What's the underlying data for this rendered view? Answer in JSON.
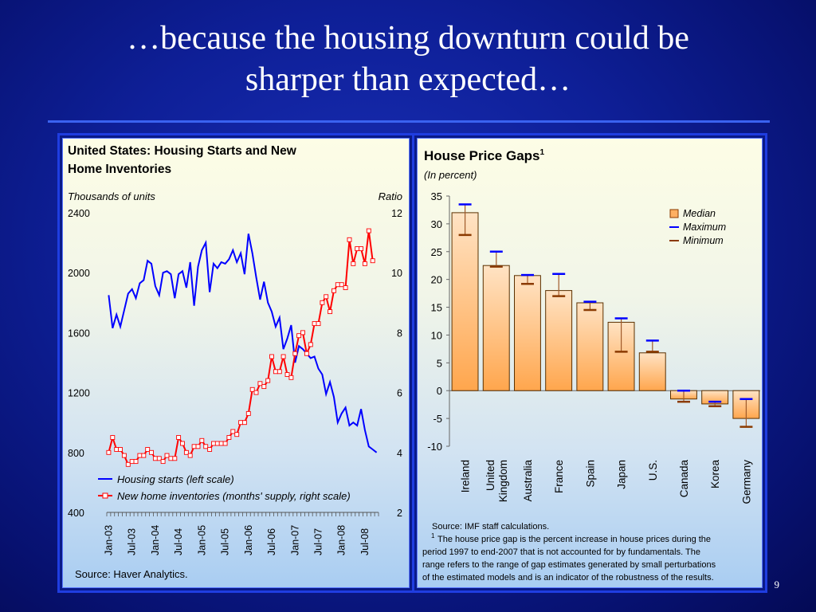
{
  "slide": {
    "title_line1": "…because the housing downturn could be",
    "title_line2": "sharper than expected…",
    "page_number": "9"
  },
  "colors": {
    "background": "#0e1f97",
    "housing_starts": "#0000ff",
    "inventories": "#ff0000",
    "median_bar": "#ffa64d",
    "maximum": "#0000ff",
    "minimum": "#8b3a00"
  },
  "left_chart": {
    "title_line1": "United States: Housing Starts and New",
    "title_line2": "Home Inventories",
    "left_axis_label": "Thousands of units",
    "right_axis_label": "Ratio",
    "source": "Source: Haver Analytics."
  },
  "right_chart": {
    "title": "House Price Gaps",
    "title_sup": "1",
    "subtitle": "(In percent)",
    "source": "Source: IMF staff calculations.",
    "footnote_mark": "1",
    "footnote_line1": "The house price gap is the percent increase in house prices during the",
    "footnote_line2": "period 1997 to end-2007 that is not accounted for by fundamentals. The",
    "footnote_line3": "range refers to the range  of gap estimates generated by small perturbations",
    "footnote_line4": "of the estimated models and is an indicator of the robustness of the results."
  },
  "chart_data": [
    {
      "type": "line",
      "title": "United States: Housing Starts and New Home Inventories",
      "y_left": {
        "label": "Thousands of units",
        "lim": [
          400,
          2400
        ],
        "ticks": [
          "2400",
          "2000",
          "1600",
          "1200",
          "800",
          "400"
        ]
      },
      "y_right": {
        "label": "Ratio",
        "lim": [
          2,
          12
        ],
        "ticks": [
          "12",
          "10",
          "8",
          "6",
          "4",
          "2"
        ]
      },
      "x_ticks": [
        "Jan-03",
        "Jul-03",
        "Jan-04",
        "Jul-04",
        "Jan-05",
        "Jul-05",
        "Jan-06",
        "Jul-06",
        "Jan-07",
        "Jul-07",
        "Jan-08",
        "Jul-08"
      ],
      "x_start": "Jan-03",
      "x_frequency": "monthly",
      "legend": "bottom-left",
      "series": [
        {
          "name": "Housing starts (left scale)",
          "axis": "left",
          "marker": "none",
          "values": [
            1850,
            1630,
            1720,
            1640,
            1750,
            1860,
            1890,
            1830,
            1930,
            1950,
            2080,
            2060,
            1910,
            1850,
            2000,
            2010,
            1990,
            1830,
            1990,
            2010,
            1900,
            2070,
            1780,
            2040,
            2150,
            2200,
            1870,
            2060,
            2030,
            2070,
            2060,
            2090,
            2150,
            2070,
            2130,
            1990,
            2260,
            2130,
            1970,
            1820,
            1940,
            1800,
            1740,
            1640,
            1700,
            1490,
            1560,
            1650,
            1400,
            1510,
            1490,
            1460,
            1430,
            1440,
            1360,
            1320,
            1190,
            1270,
            1170,
            1000,
            1060,
            1100,
            980,
            1000,
            980,
            1090,
            950,
            840,
            820,
            800
          ]
        },
        {
          "name": "New home inventories (months' supply, right scale)",
          "axis": "right",
          "marker": "square",
          "values": [
            4.0,
            4.5,
            4.1,
            4.1,
            3.9,
            3.6,
            3.7,
            3.7,
            3.9,
            3.9,
            4.1,
            4.0,
            3.8,
            3.8,
            3.7,
            3.9,
            3.8,
            3.8,
            4.5,
            4.3,
            4.0,
            3.9,
            4.2,
            4.2,
            4.4,
            4.2,
            4.1,
            4.3,
            4.3,
            4.3,
            4.3,
            4.5,
            4.7,
            4.6,
            5.0,
            5.0,
            5.3,
            6.1,
            6.0,
            6.3,
            6.2,
            6.4,
            7.2,
            6.7,
            6.7,
            7.2,
            6.6,
            6.5,
            7.3,
            7.9,
            8.0,
            7.3,
            7.6,
            8.3,
            8.3,
            9.0,
            9.2,
            8.7,
            9.4,
            9.6,
            9.6,
            9.5,
            11.1,
            10.3,
            10.8,
            10.8,
            10.3,
            11.4,
            10.4
          ]
        }
      ]
    },
    {
      "type": "bar",
      "title": "House Price Gaps",
      "subtitle": "(In percent)",
      "ylim": [
        -10,
        35
      ],
      "y_ticks": [
        "35",
        "30",
        "25",
        "20",
        "15",
        "10",
        "5",
        "0",
        "-5",
        "-10"
      ],
      "categories": [
        [
          "Ireland"
        ],
        [
          "United",
          "Kingdom"
        ],
        [
          "Australia"
        ],
        [
          "France"
        ],
        [
          "Spain"
        ],
        [
          "Japan"
        ],
        [
          "U.S."
        ],
        [
          "Canada"
        ],
        [
          "Korea"
        ],
        [
          "Germany"
        ]
      ],
      "legend": "top-right",
      "series": [
        {
          "name": "Median",
          "values": [
            32.0,
            22.5,
            20.7,
            18.0,
            15.8,
            12.3,
            6.8,
            -1.5,
            -2.4,
            -5.0
          ]
        },
        {
          "name": "Maximum",
          "values": [
            33.5,
            25.0,
            20.8,
            21.0,
            16.0,
            13.0,
            9.0,
            0.0,
            -2.0,
            -1.5
          ]
        },
        {
          "name": "Minimum",
          "values": [
            28.0,
            22.3,
            19.2,
            17.0,
            14.5,
            7.0,
            7.0,
            -2.0,
            -2.8,
            -6.5
          ]
        }
      ]
    }
  ]
}
